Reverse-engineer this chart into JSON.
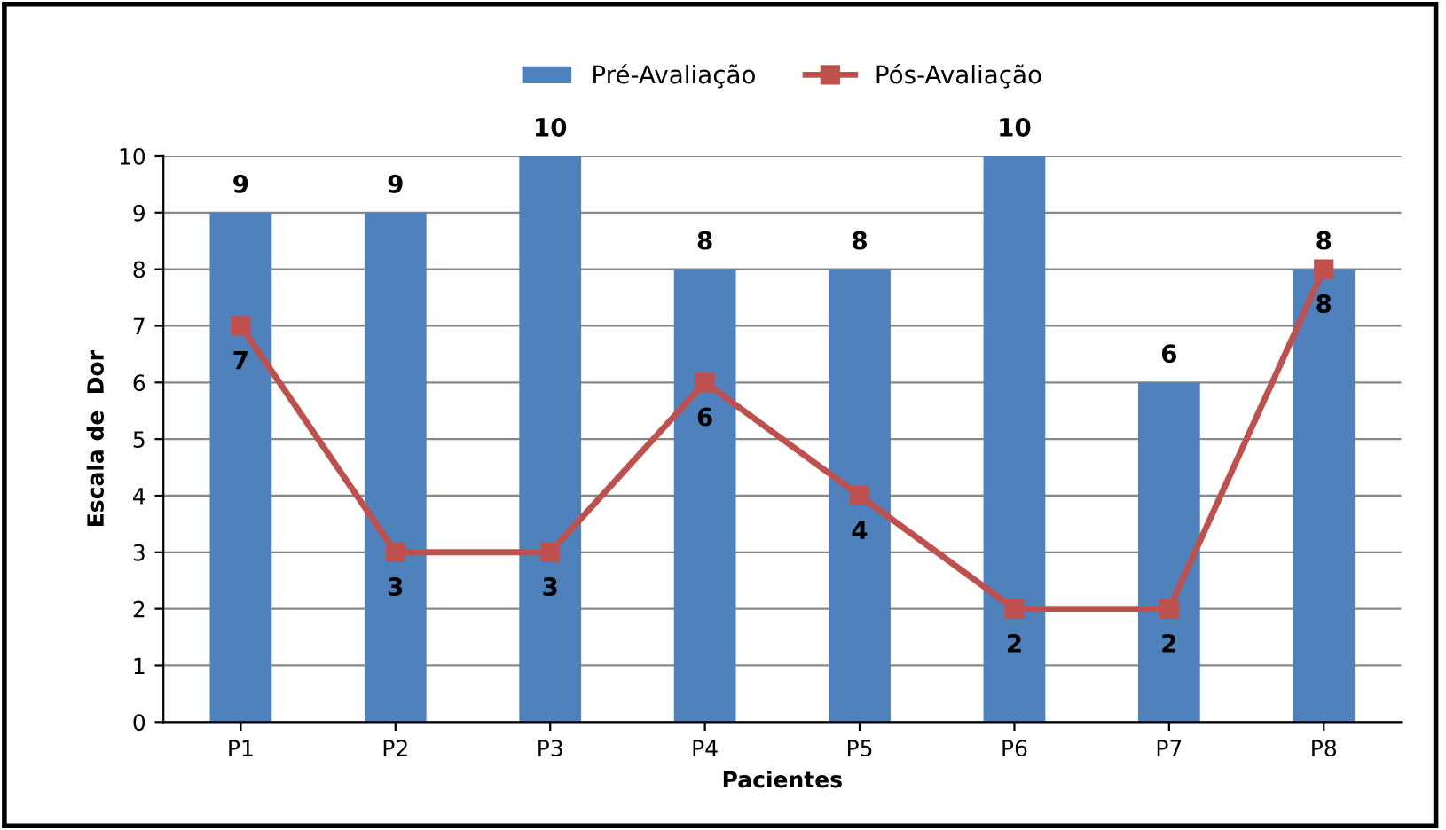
{
  "chart_data": {
    "type": "bar",
    "xlabel": "Pacientes",
    "ylabel": "Escala de  Dor",
    "categories": [
      "P1",
      "P2",
      "P3",
      "P4",
      "P5",
      "P6",
      "P7",
      "P8"
    ],
    "series": [
      {
        "name": "Pré-Avaliação",
        "color": "#4f81bd",
        "values": [
          9,
          9,
          10,
          8,
          8,
          10,
          6,
          8
        ]
      },
      {
        "name": "Pós-Avaliação",
        "type": "line",
        "color": "#c0504d",
        "marker": "square",
        "values": [
          7,
          3,
          3,
          6,
          4,
          2,
          2,
          8
        ]
      }
    ],
    "ylim": [
      0,
      10
    ],
    "yticks": [
      0,
      1,
      2,
      3,
      4,
      5,
      6,
      7,
      8,
      9,
      10
    ],
    "grid": "y",
    "legend": "top",
    "data_labels": true
  }
}
